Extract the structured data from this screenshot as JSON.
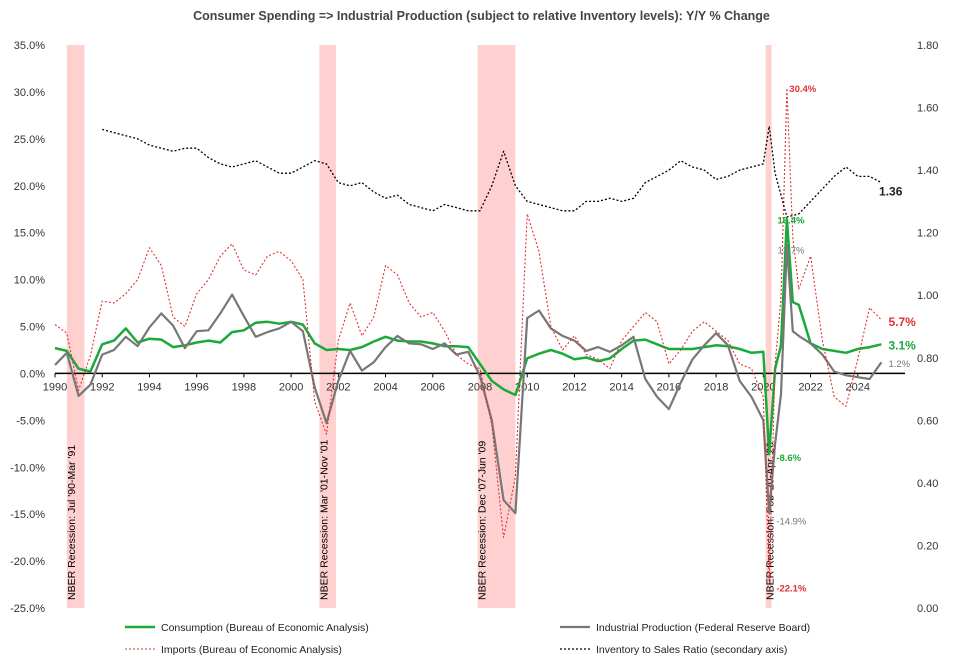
{
  "chart_data": {
    "type": "line",
    "title": "Consumer Spending => Industrial Production (subject to relative Inventory levels): Y/Y % Change",
    "xlim": [
      1990,
      2026
    ],
    "ylim": [
      -25,
      35
    ],
    "y2lim": [
      0,
      1.8
    ],
    "x_ticks": [
      "1990",
      "1992",
      "1994",
      "1996",
      "1998",
      "2000",
      "2002",
      "2004",
      "2006",
      "2008",
      "2010",
      "2012",
      "2014",
      "2016",
      "2018",
      "2020",
      "2022",
      "2024"
    ],
    "y_ticks": [
      "35.0%",
      "30.0%",
      "25.0%",
      "20.0%",
      "15.0%",
      "10.0%",
      "5.0%",
      "0.0%",
      "-5.0%",
      "-10.0%",
      "-15.0%",
      "-20.0%",
      "-25.0%"
    ],
    "y2_ticks": [
      "1.80",
      "1.60",
      "1.40",
      "1.20",
      "1.00",
      "0.80",
      "0.60",
      "0.40",
      "0.20",
      "0.00"
    ],
    "recessions": [
      {
        "start": 1990.5,
        "end": 1991.25,
        "label": "NBER Recession: Jul '90-Mar '91"
      },
      {
        "start": 2001.2,
        "end": 2001.9,
        "label": "NBER Recession: Mar '01-Nov '01"
      },
      {
        "start": 2007.9,
        "end": 2009.5,
        "label": "NBER Recession: Dec '07-Jun '09"
      },
      {
        "start": 2020.1,
        "end": 2020.35,
        "label": "NBER Recession: Feb '20-Apr '20"
      }
    ],
    "series": [
      {
        "name": "Consumption (Bureau of Economic Analysis)",
        "color": "#1aaa3a",
        "axis": "left",
        "x": [
          1990,
          1990.5,
          1991,
          1991.5,
          1992,
          1992.5,
          1993,
          1993.5,
          1994,
          1994.5,
          1995,
          1995.5,
          1996,
          1996.5,
          1997,
          1997.5,
          1998,
          1998.5,
          1999,
          1999.5,
          2000,
          2000.5,
          2001,
          2001.5,
          2002,
          2002.5,
          2003,
          2003.5,
          2004,
          2004.5,
          2005,
          2005.5,
          2006,
          2006.5,
          2007,
          2007.5,
          2008,
          2008.5,
          2009,
          2009.5,
          2010,
          2010.5,
          2011,
          2011.5,
          2012,
          2012.5,
          2013,
          2013.5,
          2014,
          2014.5,
          2015,
          2015.5,
          2016,
          2016.5,
          2017,
          2017.5,
          2018,
          2018.5,
          2019,
          2019.5,
          2020,
          2020.25,
          2020.5,
          2020.75,
          2021,
          2021.25,
          2021.5,
          2022,
          2022.5,
          2023,
          2023.5,
          2024,
          2024.5,
          2025
        ],
        "values": [
          2.7,
          2.4,
          0.5,
          0.2,
          3.1,
          3.5,
          4.8,
          3.3,
          3.7,
          3.6,
          2.8,
          3.0,
          3.3,
          3.5,
          3.3,
          4.4,
          4.6,
          5.4,
          5.5,
          5.3,
          5.5,
          5.2,
          3.2,
          2.5,
          2.6,
          2.5,
          2.8,
          3.4,
          3.9,
          3.5,
          3.4,
          3.4,
          3.2,
          2.9,
          2.9,
          2.8,
          1.0,
          -0.8,
          -1.7,
          -2.3,
          1.6,
          2.1,
          2.5,
          2.1,
          1.5,
          1.7,
          1.3,
          1.6,
          2.6,
          3.5,
          3.6,
          3.1,
          2.6,
          2.6,
          2.6,
          2.8,
          3.0,
          2.9,
          2.6,
          2.2,
          2.3,
          -8.6,
          0.5,
          3.0,
          16.4,
          7.6,
          7.3,
          3.2,
          2.6,
          2.4,
          2.2,
          2.6,
          2.8,
          3.1
        ]
      },
      {
        "name": "Industrial Production (Federal Reserve Board)",
        "color": "#777777",
        "axis": "left",
        "x": [
          1990,
          1990.5,
          1991,
          1991.5,
          1992,
          1992.5,
          1993,
          1993.5,
          1994,
          1994.5,
          1995,
          1995.5,
          1996,
          1996.5,
          1997,
          1997.5,
          1998,
          1998.5,
          1999,
          1999.5,
          2000,
          2000.5,
          2001,
          2001.5,
          2002,
          2002.5,
          2003,
          2003.5,
          2004,
          2004.5,
          2005,
          2005.5,
          2006,
          2006.5,
          2007,
          2007.5,
          2008,
          2008.5,
          2009,
          2009.5,
          2010,
          2010.5,
          2011,
          2011.5,
          2012,
          2012.5,
          2013,
          2013.5,
          2014,
          2014.5,
          2015,
          2015.5,
          2016,
          2016.5,
          2017,
          2017.5,
          2018,
          2018.5,
          2019,
          2019.5,
          2020,
          2020.25,
          2020.5,
          2020.75,
          2021,
          2021.25,
          2021.5,
          2022,
          2022.5,
          2023,
          2023.5,
          2024,
          2024.5,
          2025
        ],
        "values": [
          0.9,
          2.2,
          -2.4,
          -1.2,
          2.0,
          2.5,
          3.9,
          2.9,
          4.9,
          6.4,
          5.1,
          2.7,
          4.5,
          4.6,
          6.4,
          8.4,
          6.1,
          3.9,
          4.4,
          4.8,
          5.5,
          4.5,
          -1.5,
          -5.3,
          -0.8,
          2.4,
          0.3,
          1.2,
          2.8,
          4.0,
          3.2,
          3.1,
          2.6,
          3.2,
          2.0,
          2.3,
          -0.3,
          -5.0,
          -13.5,
          -14.9,
          5.9,
          6.7,
          4.8,
          4.0,
          3.5,
          2.4,
          2.8,
          2.3,
          3.0,
          3.9,
          -0.6,
          -2.5,
          -3.8,
          -1.0,
          1.5,
          3.0,
          4.3,
          3.0,
          -0.8,
          -2.5,
          -5.0,
          -14.9,
          -7.5,
          -2.2,
          13.7,
          4.5,
          4.0,
          3.2,
          2.0,
          0.2,
          -0.2,
          -0.4,
          -0.6,
          1.2
        ]
      },
      {
        "name": "Imports (Bureau of Economic Analysis)",
        "color": "#e03030",
        "axis": "left",
        "x": [
          1990,
          1990.5,
          1991,
          1991.5,
          1992,
          1992.5,
          1993,
          1993.5,
          1994,
          1994.5,
          1995,
          1995.5,
          1996,
          1996.5,
          1997,
          1997.5,
          1998,
          1998.5,
          1999,
          1999.5,
          2000,
          2000.5,
          2001,
          2001.5,
          2002,
          2002.5,
          2003,
          2003.5,
          2004,
          2004.5,
          2005,
          2005.5,
          2006,
          2006.5,
          2007,
          2007.5,
          2008,
          2008.5,
          2009,
          2009.5,
          2010,
          2010.5,
          2011,
          2011.5,
          2012,
          2012.5,
          2013,
          2013.5,
          2014,
          2014.5,
          2015,
          2015.5,
          2016,
          2016.5,
          2017,
          2017.5,
          2018,
          2018.5,
          2019,
          2019.5,
          2020,
          2020.25,
          2020.5,
          2020.75,
          2021,
          2021.25,
          2021.5,
          2022,
          2022.5,
          2023,
          2023.5,
          2024,
          2024.5,
          2025
        ],
        "values": [
          5.2,
          4.3,
          -1.8,
          1.9,
          7.7,
          7.5,
          8.5,
          10.0,
          13.4,
          11.5,
          6.0,
          5.0,
          8.5,
          10.0,
          12.5,
          13.8,
          11.0,
          10.5,
          12.5,
          13.0,
          12.0,
          10.0,
          -3.0,
          -6.5,
          3.5,
          7.5,
          4.0,
          6.0,
          11.5,
          10.5,
          7.5,
          6.0,
          6.5,
          4.5,
          2.0,
          1.0,
          0.5,
          -5.5,
          -17.5,
          -11.0,
          17.0,
          13.0,
          5.0,
          2.5,
          4.0,
          2.0,
          1.5,
          0.5,
          3.5,
          5.0,
          6.5,
          5.5,
          1.0,
          2.5,
          4.5,
          5.5,
          4.5,
          3.5,
          1.0,
          0.5,
          -2.5,
          -22.1,
          1.0,
          8.0,
          30.4,
          14.5,
          9.0,
          12.5,
          3.5,
          -2.5,
          -3.5,
          1.5,
          7.0,
          5.7
        ]
      },
      {
        "name": "Inventory to Sales Ratio (secondary axis)",
        "color": "#000000",
        "axis": "right",
        "x": [
          1992,
          1992.5,
          1993,
          1993.5,
          1994,
          1994.5,
          1995,
          1995.5,
          1996,
          1996.5,
          1997,
          1997.5,
          1998,
          1998.5,
          1999,
          1999.5,
          2000,
          2000.5,
          2001,
          2001.5,
          2002,
          2002.5,
          2003,
          2003.5,
          2004,
          2004.5,
          2005,
          2005.5,
          2006,
          2006.5,
          2007,
          2007.5,
          2008,
          2008.5,
          2009,
          2009.5,
          2010,
          2010.5,
          2011,
          2011.5,
          2012,
          2012.5,
          2013,
          2013.5,
          2014,
          2014.5,
          2015,
          2015.5,
          2016,
          2016.5,
          2017,
          2017.5,
          2018,
          2018.5,
          2019,
          2019.5,
          2020,
          2020.25,
          2020.5,
          2021,
          2021.5,
          2022,
          2022.5,
          2023,
          2023.5,
          2024,
          2024.5,
          2025
        ],
        "values": [
          1.53,
          1.52,
          1.51,
          1.5,
          1.48,
          1.47,
          1.46,
          1.47,
          1.47,
          1.44,
          1.42,
          1.41,
          1.42,
          1.43,
          1.41,
          1.39,
          1.39,
          1.41,
          1.43,
          1.42,
          1.36,
          1.35,
          1.36,
          1.33,
          1.31,
          1.32,
          1.29,
          1.28,
          1.27,
          1.29,
          1.28,
          1.27,
          1.27,
          1.35,
          1.46,
          1.35,
          1.3,
          1.29,
          1.28,
          1.27,
          1.27,
          1.3,
          1.3,
          1.31,
          1.3,
          1.31,
          1.36,
          1.38,
          1.4,
          1.43,
          1.41,
          1.4,
          1.37,
          1.38,
          1.4,
          1.41,
          1.42,
          1.54,
          1.39,
          1.25,
          1.26,
          1.3,
          1.34,
          1.38,
          1.41,
          1.38,
          1.38,
          1.36
        ]
      }
    ],
    "annotations": [
      {
        "text": "30.4%",
        "x": 2021.1,
        "y": 30.4,
        "color": "#e03030",
        "bold": true
      },
      {
        "text": "16.4%",
        "x": 2020.6,
        "y": 16.4,
        "color": "#1aaa3a",
        "bold": true
      },
      {
        "text": "13.7%",
        "x": 2020.6,
        "y": 13.2,
        "color": "#777777",
        "bold": false
      },
      {
        "text": "-8.6%",
        "x": 2020.55,
        "y": -8.9,
        "color": "#1aaa3a",
        "bold": true
      },
      {
        "text": "-14.9%",
        "x": 2020.55,
        "y": -15.7,
        "color": "#777777",
        "bold": false
      },
      {
        "text": "-22.1%",
        "x": 2020.55,
        "y": -22.8,
        "color": "#e03030",
        "bold": true
      },
      {
        "text": "5.7%",
        "x": 2025.3,
        "y": 5.5,
        "color": "#e03030",
        "bold": true
      },
      {
        "text": "3.1%",
        "x": 2025.3,
        "y": 3.0,
        "color": "#1aaa3a",
        "bold": true
      },
      {
        "text": "1.2%",
        "x": 2025.3,
        "y": 1.1,
        "color": "#777777",
        "bold": false
      },
      {
        "text": "1.36",
        "x": 2024.9,
        "y": 19.4,
        "color": "#222222",
        "bold": true
      }
    ]
  }
}
